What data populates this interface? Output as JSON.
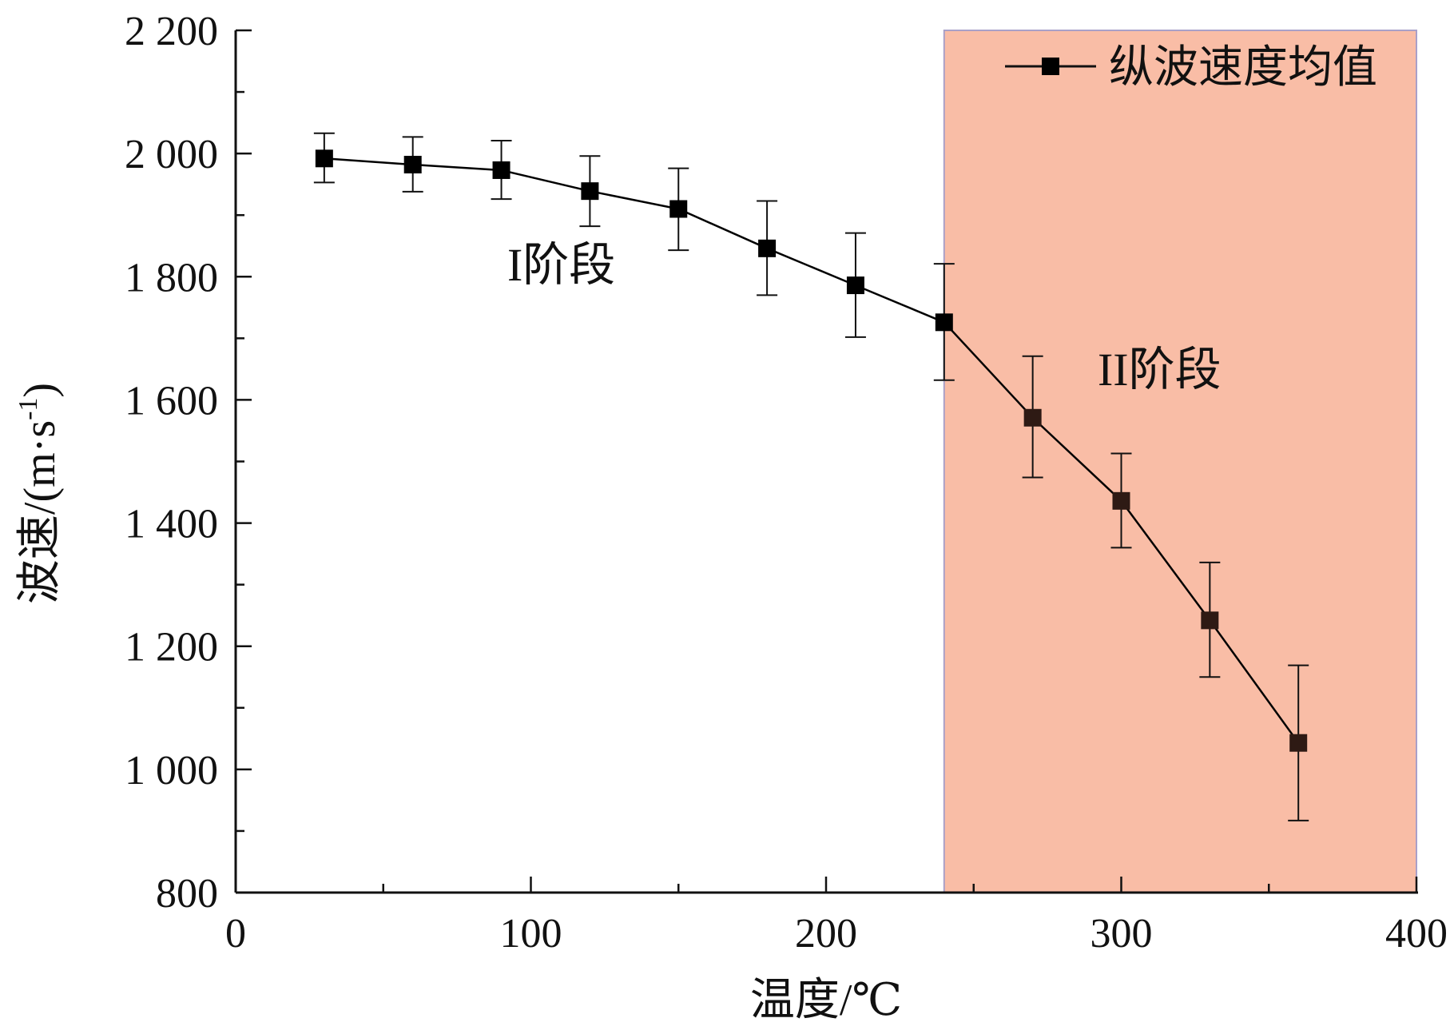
{
  "chart_data": {
    "type": "line",
    "xlabel": "温度/℃",
    "ylabel": "波速/(m·s",
    "ylabel_sup": "-1",
    "ylabel_close": ")",
    "xlim": [
      0,
      400
    ],
    "ylim": [
      800,
      2200
    ],
    "x_ticks": [
      0,
      100,
      200,
      300,
      400
    ],
    "x_tick_labels": [
      "0",
      "100",
      "200",
      "300",
      "400"
    ],
    "y_ticks": [
      800,
      1000,
      1200,
      1400,
      1600,
      1800,
      2000,
      2200
    ],
    "y_tick_labels": [
      "800",
      "1 000",
      "1 200",
      "1 400",
      "1 600",
      "1 800",
      "2 000",
      "2 200"
    ],
    "grid": false,
    "legend_position": "top-right",
    "series": [
      {
        "name": "纵波速度均值",
        "color": "#000000",
        "marker": "square",
        "x": [
          30,
          60,
          90,
          120,
          150,
          180,
          210,
          240,
          270,
          300,
          330,
          360
        ],
        "y": [
          1992,
          1982,
          1973,
          1939,
          1910,
          1846,
          1786,
          1726,
          1571,
          1436,
          1242,
          1043
        ],
        "error_upper": [
          2033,
          2027,
          2021,
          1996,
          1976,
          1923,
          1871,
          1821,
          1671,
          1513,
          1336,
          1169
        ],
        "error_lower": [
          1953,
          1938,
          1926,
          1882,
          1843,
          1770,
          1702,
          1632,
          1474,
          1360,
          1150,
          917
        ]
      }
    ],
    "shaded_region": {
      "x_range": [
        240,
        400
      ],
      "color": "#f9bda6",
      "border_color": "#a9a0c8"
    },
    "annotations": [
      {
        "text": "I阶段",
        "x": 92,
        "y": 1820
      },
      {
        "text": "II阶段",
        "x": 292,
        "y": 1650
      }
    ]
  }
}
